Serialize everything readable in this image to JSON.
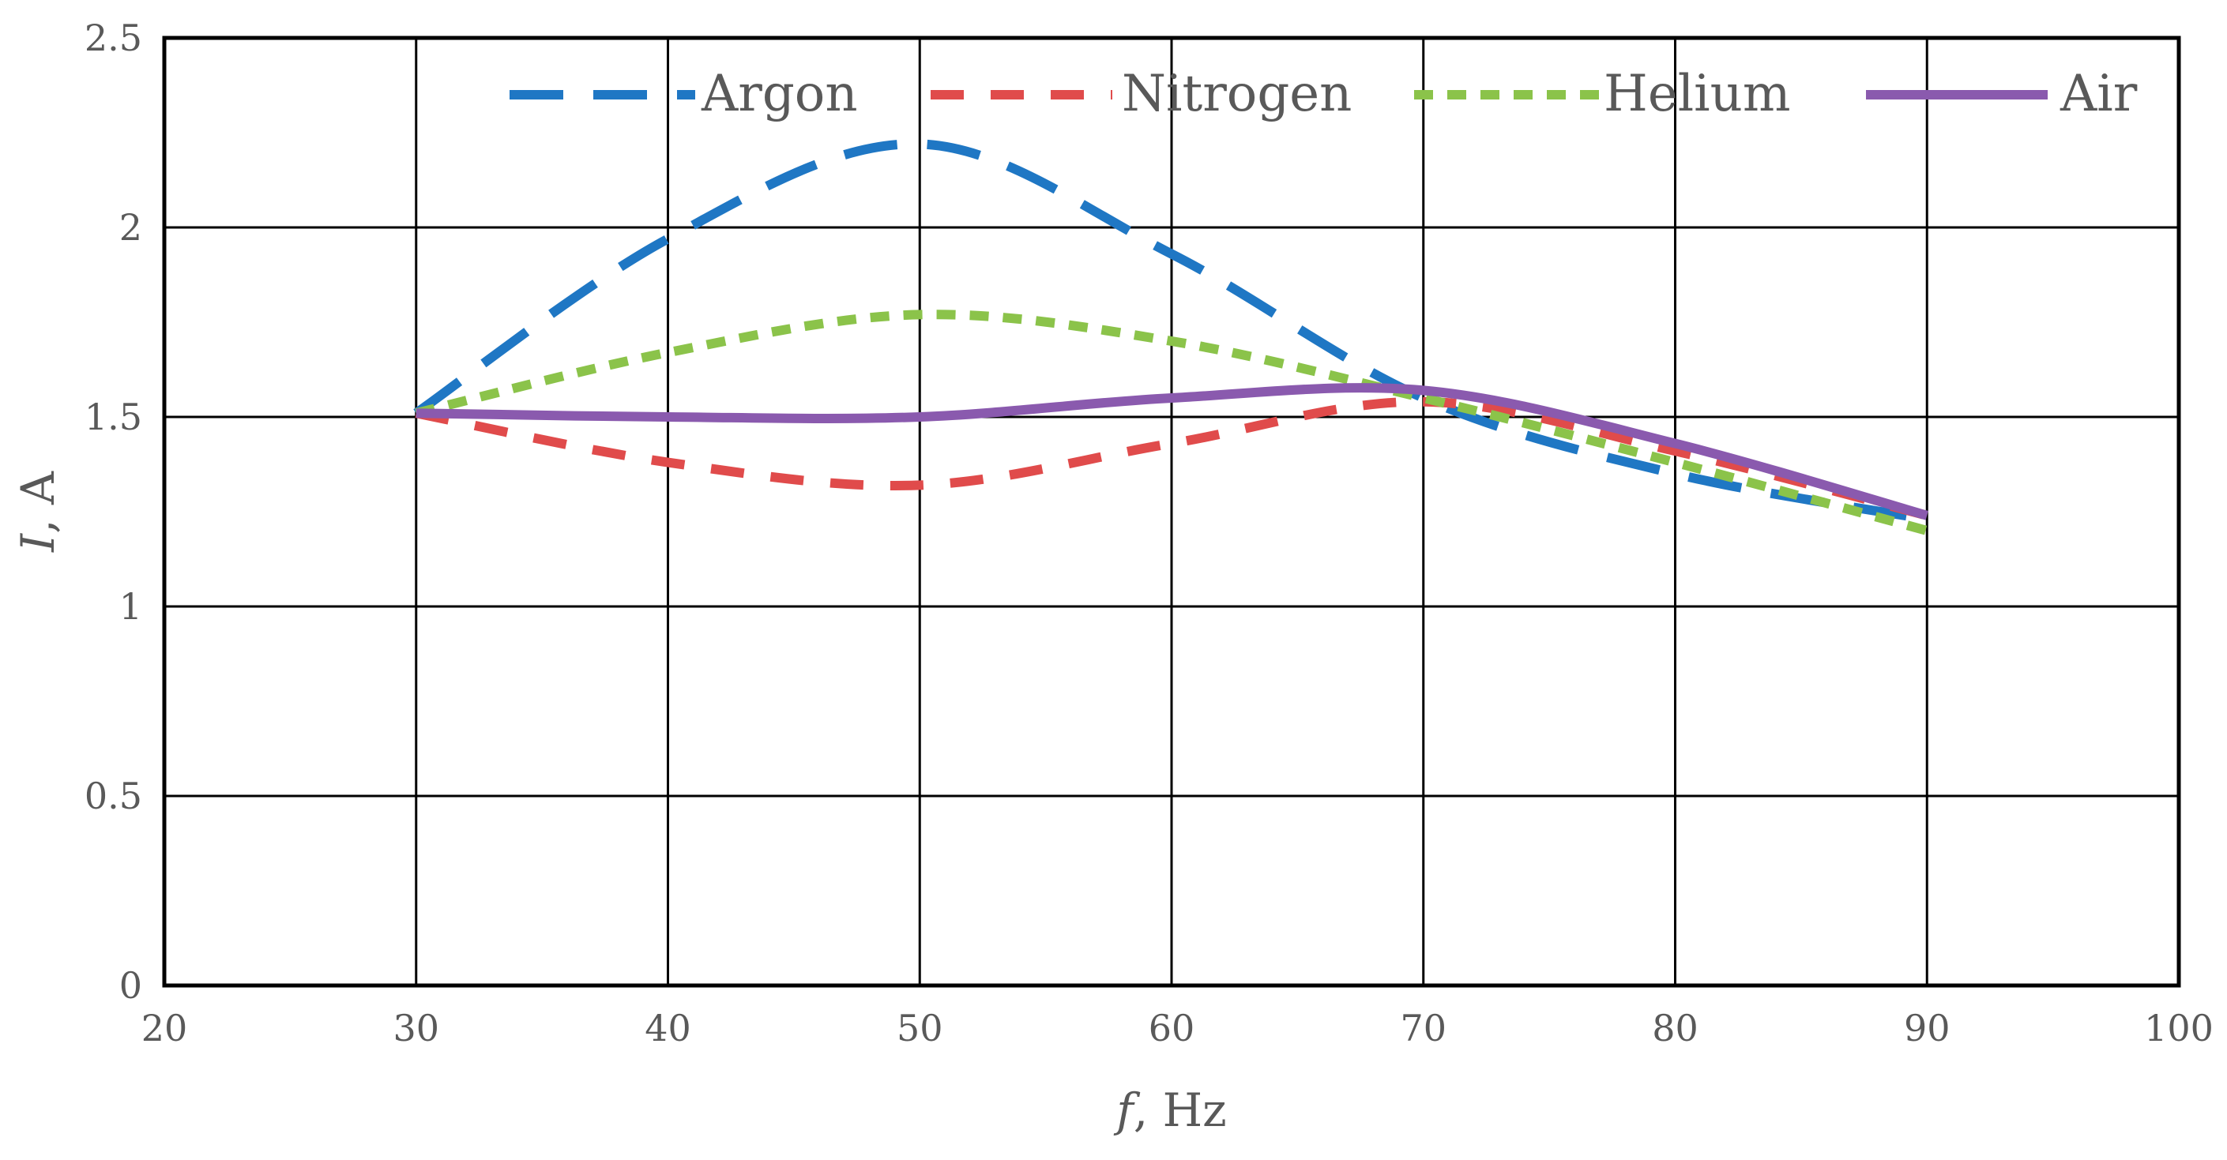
{
  "chart_data": {
    "type": "line",
    "title": "",
    "xlabel": "Hz",
    "xlabel_symbol": "f",
    "ylabel": "A",
    "ylabel_symbol": "I",
    "xlim": [
      20,
      100
    ],
    "ylim": [
      0,
      2.5
    ],
    "xticks": [
      20,
      30,
      40,
      50,
      60,
      70,
      80,
      90,
      100
    ],
    "yticks": [
      0,
      0.5,
      1,
      1.5,
      2,
      2.5
    ],
    "xtick_labels": [
      "20",
      "30",
      "40",
      "50",
      "60",
      "70",
      "80",
      "90",
      "100"
    ],
    "ytick_labels": [
      "0",
      "0.5",
      "1",
      "1.5",
      "2",
      "2.5"
    ],
    "grid": true,
    "legend_position": "top",
    "x": [
      30,
      40,
      50,
      60,
      70,
      80,
      90
    ],
    "series": [
      {
        "name": "Argon",
        "color": "#1f77c4",
        "dash": "long-dash",
        "values": [
          1.51,
          1.97,
          2.22,
          1.93,
          1.55,
          1.35,
          1.23
        ]
      },
      {
        "name": "Nitrogen",
        "color": "#e04b4b",
        "dash": "dash",
        "values": [
          1.51,
          1.38,
          1.32,
          1.43,
          1.54,
          1.41,
          1.24
        ]
      },
      {
        "name": "Helium",
        "color": "#8bc34a",
        "dash": "short-dash",
        "values": [
          1.51,
          1.67,
          1.77,
          1.7,
          1.55,
          1.38,
          1.2
        ]
      },
      {
        "name": "Air",
        "color": "#8a5aae",
        "dash": "solid",
        "values": [
          1.51,
          1.5,
          1.5,
          1.55,
          1.57,
          1.43,
          1.24
        ]
      }
    ]
  }
}
